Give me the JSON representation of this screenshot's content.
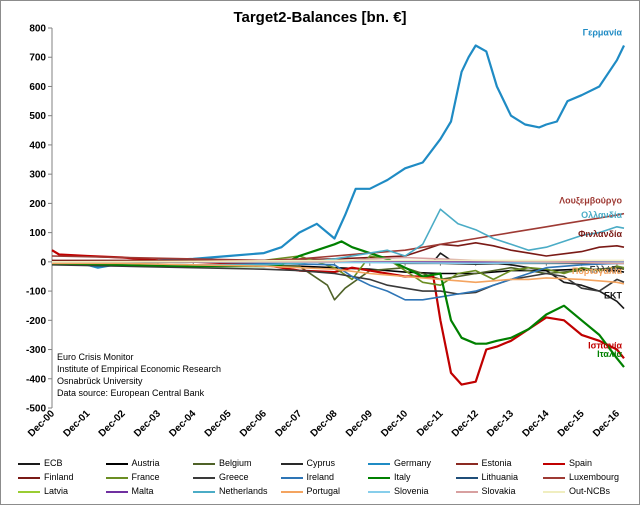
{
  "chart_data": {
    "type": "line",
    "title": "Target2-Balances [bn. €]",
    "ylim": [
      -500,
      800
    ],
    "yticks": [
      800,
      700,
      600,
      500,
      400,
      300,
      200,
      100,
      0,
      -100,
      -200,
      -300,
      -400,
      -500
    ],
    "xticks": [
      "Dec-00",
      "Dec-01",
      "Dec-02",
      "Dec-03",
      "Dec-04",
      "Dec-05",
      "Dec-06",
      "Dec-07",
      "Dec-08",
      "Dec-09",
      "Dec-10",
      "Dec-11",
      "Dec-12",
      "Dec-13",
      "Dec-14",
      "Dec-15",
      "Dec-16"
    ],
    "grid": false,
    "legend_position": "bottom",
    "source_text": [
      "Euro Crisis Monitor",
      "Institute of Empirical Economic Research",
      "Osnabrück University",
      "Data source: European Central Bank"
    ],
    "series": [
      {
        "name": "ECB",
        "color": "#1a1a1a",
        "label": "EKT",
        "x": [
          0,
          1,
          2,
          3,
          4,
          5,
          6,
          7,
          8,
          9,
          10,
          10.8,
          11,
          11.3,
          11.6,
          12,
          13,
          14,
          14.5,
          15,
          15.5,
          16,
          16.2
        ],
        "y": [
          0,
          0,
          0,
          0,
          0,
          0,
          0,
          0,
          0,
          0,
          0,
          0,
          30,
          5,
          2,
          0,
          -10,
          -30,
          -70,
          -80,
          -100,
          -135,
          -160
        ]
      },
      {
        "name": "Austria",
        "color": "#000000",
        "x": [
          0,
          2,
          4,
          6,
          7,
          8,
          9,
          10,
          11,
          12,
          13,
          14,
          15,
          16,
          16.2
        ],
        "y": [
          -5,
          -8,
          -10,
          -12,
          -15,
          -20,
          -25,
          -35,
          -40,
          -40,
          -30,
          -30,
          -25,
          -30,
          -35
        ]
      },
      {
        "name": "Belgium",
        "color": "#4f6228",
        "x": [
          0,
          2,
          4,
          6,
          7,
          7.8,
          8,
          8.3,
          9,
          10,
          11,
          12,
          13,
          14,
          15,
          16,
          16.2
        ],
        "y": [
          -5,
          -8,
          -10,
          -12,
          -15,
          -80,
          -130,
          -90,
          -30,
          -20,
          -60,
          -40,
          -20,
          -40,
          -30,
          -20,
          -25
        ]
      },
      {
        "name": "Cyprus",
        "color": "#2a2a2a",
        "x": [
          0,
          4,
          7,
          8,
          9,
          10,
          11,
          12,
          13,
          14,
          15,
          16,
          16.2
        ],
        "y": [
          0,
          0,
          0,
          0,
          0,
          -5,
          -5,
          -8,
          -5,
          -5,
          -5,
          -5,
          -5
        ]
      },
      {
        "name": "Germany",
        "color": "#1f8bc4",
        "label": "Γερμανία",
        "x": [
          0,
          1,
          1.3,
          2,
          3,
          4,
          5,
          6,
          6.5,
          7,
          7.5,
          8,
          8.3,
          8.6,
          9,
          9.5,
          10,
          10.5,
          11,
          11.3,
          11.6,
          11.8,
          12,
          12.3,
          12.6,
          13,
          13.4,
          13.8,
          14,
          14.3,
          14.6,
          15,
          15.5,
          16,
          16.2
        ],
        "y": [
          0,
          -10,
          -20,
          -5,
          5,
          10,
          20,
          30,
          50,
          100,
          130,
          80,
          160,
          250,
          250,
          280,
          320,
          340,
          420,
          480,
          650,
          700,
          740,
          720,
          600,
          500,
          470,
          460,
          470,
          480,
          550,
          570,
          600,
          690,
          740
        ]
      },
      {
        "name": "Estonia",
        "color": "#8b2a22",
        "x": [
          0,
          4,
          8,
          12,
          16,
          16.2
        ],
        "y": [
          0,
          0,
          0,
          0,
          0,
          0
        ]
      },
      {
        "name": "Spain",
        "color": "#c00000",
        "label": "Ισπανία",
        "x": [
          0,
          0.2,
          1,
          2,
          3,
          4,
          5,
          6,
          7,
          8,
          8.5,
          9,
          10,
          10.8,
          11,
          11.3,
          11.6,
          12,
          12.3,
          12.6,
          13,
          13.5,
          14,
          14.5,
          15,
          15.5,
          16,
          16.2
        ],
        "y": [
          40,
          25,
          20,
          15,
          5,
          0,
          -5,
          -10,
          -30,
          -35,
          -20,
          -30,
          -50,
          -50,
          -200,
          -380,
          -420,
          -410,
          -300,
          -290,
          -270,
          -230,
          -190,
          -200,
          -250,
          -270,
          -300,
          -330
        ]
      },
      {
        "name": "Finland",
        "color": "#7a1a16",
        "label": "Φινλανδία",
        "x": [
          0,
          2,
          4,
          6,
          8,
          9,
          10,
          10.5,
          11,
          11.5,
          12,
          12.5,
          13,
          13.5,
          14,
          15,
          15.5,
          16,
          16.2
        ],
        "y": [
          5,
          5,
          5,
          5,
          10,
          15,
          20,
          40,
          60,
          55,
          65,
          55,
          40,
          30,
          20,
          35,
          50,
          55,
          50
        ]
      },
      {
        "name": "France",
        "color": "#6b8e23",
        "x": [
          0,
          2,
          4,
          6,
          7,
          8,
          8.5,
          9,
          9.5,
          10,
          10.5,
          11,
          11.5,
          12,
          12.5,
          13,
          13.5,
          14,
          14.5,
          15,
          15.5,
          16,
          16.2
        ],
        "y": [
          0,
          -2,
          0,
          5,
          20,
          -20,
          -60,
          20,
          10,
          -30,
          -70,
          -80,
          -40,
          -30,
          -60,
          -30,
          -20,
          -25,
          -40,
          -20,
          -30,
          -15,
          -20
        ]
      },
      {
        "name": "Greece",
        "color": "#3a3a3a",
        "label": "Ελλάδα",
        "x": [
          0,
          2,
          4,
          6,
          7,
          8,
          8.5,
          9,
          9.5,
          10,
          10.5,
          11,
          11.5,
          12,
          12.5,
          13,
          13.5,
          14,
          14.5,
          15,
          15.5,
          16,
          16.2
        ],
        "y": [
          -10,
          -15,
          -20,
          -25,
          -30,
          -40,
          -50,
          -60,
          -80,
          -90,
          -100,
          -100,
          -110,
          -105,
          -80,
          -60,
          -50,
          -40,
          -50,
          -90,
          -100,
          -60,
          -70
        ]
      },
      {
        "name": "Ireland",
        "color": "#2e75b6",
        "x": [
          0,
          4,
          8,
          8.5,
          9,
          9.5,
          10,
          10.5,
          11,
          11.5,
          12,
          12.5,
          13,
          13.5,
          14,
          15,
          16,
          16.2
        ],
        "y": [
          0,
          0,
          -10,
          -50,
          -80,
          -100,
          -130,
          -130,
          -120,
          -110,
          -100,
          -80,
          -60,
          -40,
          -20,
          -10,
          -5,
          -5
        ]
      },
      {
        "name": "Italy",
        "color": "#008000",
        "label": "Ιταλία",
        "x": [
          0,
          2,
          4,
          6,
          6.5,
          7,
          7.5,
          8,
          8.2,
          8.5,
          9,
          9.5,
          10,
          10.5,
          11,
          11.3,
          11.6,
          12,
          12.3,
          12.6,
          13,
          13.5,
          14,
          14.5,
          15,
          15.5,
          16,
          16.2
        ],
        "y": [
          -5,
          -10,
          -15,
          -15,
          -10,
          20,
          40,
          60,
          70,
          50,
          30,
          10,
          -20,
          -50,
          -40,
          -200,
          -260,
          -280,
          -280,
          -270,
          -260,
          -230,
          -180,
          -150,
          -200,
          -250,
          -330,
          -360
        ]
      },
      {
        "name": "Lithuania",
        "color": "#1f4e79",
        "x": [
          0,
          4,
          8,
          12,
          16,
          16.2
        ],
        "y": [
          0,
          0,
          0,
          -2,
          -2,
          -2
        ]
      },
      {
        "name": "Luxembourg",
        "color": "#9e3a34",
        "label": "Λουξεμβούργο",
        "x": [
          0,
          2,
          4,
          6,
          7,
          8,
          9,
          10,
          11,
          12,
          12.5,
          13,
          13.5,
          14,
          14.5,
          15,
          15.5,
          16,
          16.2
        ],
        "y": [
          20,
          15,
          10,
          5,
          10,
          20,
          30,
          40,
          60,
          80,
          90,
          100,
          110,
          120,
          130,
          140,
          150,
          160,
          165
        ]
      },
      {
        "name": "Latvia",
        "color": "#9acd32",
        "x": [
          0,
          4,
          8,
          12,
          16,
          16.2
        ],
        "y": [
          0,
          0,
          0,
          0,
          0,
          0
        ]
      },
      {
        "name": "Malta",
        "color": "#7030a0",
        "x": [
          0,
          4,
          8,
          12,
          16,
          16.2
        ],
        "y": [
          0,
          0,
          0,
          0,
          0,
          0
        ]
      },
      {
        "name": "Netherlands",
        "color": "#4bacc6",
        "label": "Ολλανδία",
        "x": [
          0,
          2,
          4,
          6,
          7,
          8,
          8.5,
          9,
          9.5,
          10,
          10.5,
          11,
          11.5,
          12,
          12.5,
          13,
          13.5,
          14,
          14.5,
          15,
          15.5,
          16,
          16.2
        ],
        "y": [
          0,
          -5,
          -10,
          -10,
          -5,
          10,
          20,
          30,
          40,
          20,
          60,
          180,
          130,
          110,
          80,
          60,
          40,
          50,
          70,
          90,
          100,
          120,
          115
        ]
      },
      {
        "name": "Portugal",
        "color": "#f4a460",
        "label": "Πορτογαλία",
        "x": [
          0,
          2,
          4,
          6,
          8,
          9,
          10,
          10.5,
          11,
          11.5,
          12,
          12.5,
          13,
          13.5,
          14,
          15,
          16,
          16.2
        ],
        "y": [
          -5,
          -5,
          -10,
          -15,
          -25,
          -40,
          -50,
          -55,
          -60,
          -65,
          -70,
          -65,
          -60,
          -60,
          -55,
          -60,
          -70,
          -75
        ]
      },
      {
        "name": "Slovenia",
        "color": "#87ceeb",
        "x": [
          0,
          4,
          8,
          12,
          16,
          16.2
        ],
        "y": [
          0,
          0,
          -2,
          -5,
          -2,
          -2
        ]
      },
      {
        "name": "Slovakia",
        "color": "#d8a0a0",
        "x": [
          0,
          4,
          8,
          9,
          10,
          12,
          14,
          16,
          16.2
        ],
        "y": [
          0,
          0,
          0,
          10,
          15,
          5,
          0,
          -5,
          -5
        ]
      },
      {
        "name": "Out-NCBs",
        "color": "#f0eec0",
        "x": [
          0,
          4,
          8,
          12,
          16,
          16.2
        ],
        "y": [
          0,
          2,
          5,
          5,
          5,
          5
        ]
      }
    ]
  }
}
